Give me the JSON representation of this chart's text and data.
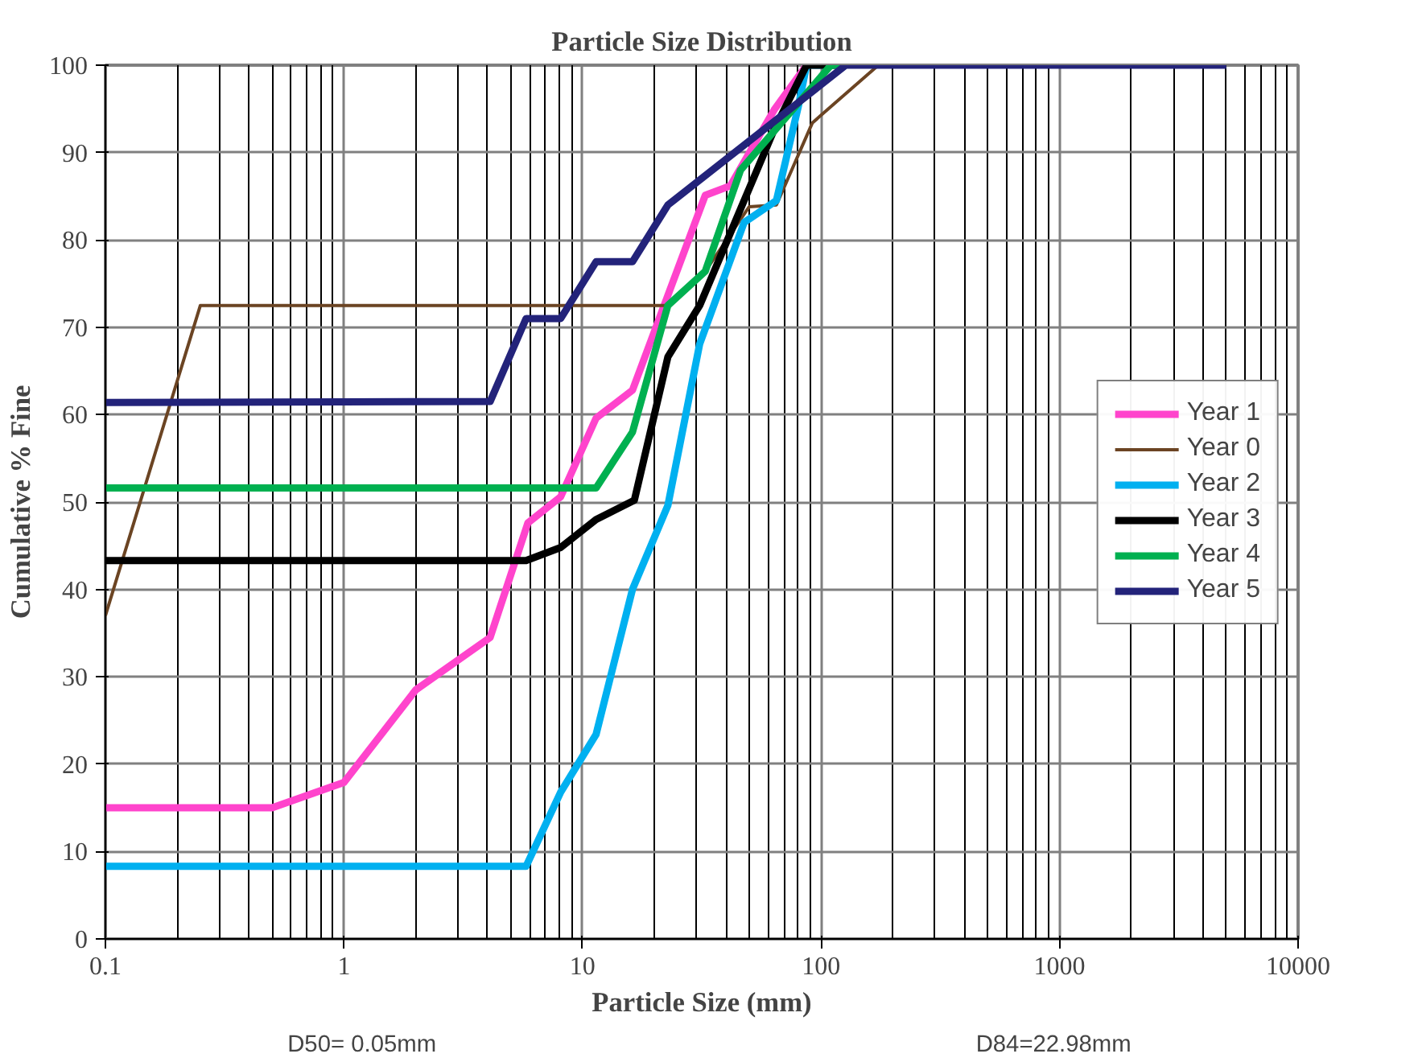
{
  "chart_data": {
    "type": "line",
    "title": "Particle Size Distribution",
    "xlabel": "Particle Size (mm)",
    "ylabel": "Cumulative % Fine",
    "log": "x",
    "xlim": [
      0.1,
      10000
    ],
    "xticks": [
      0.1,
      1,
      10,
      100,
      1000,
      10000
    ],
    "ylim": [
      0,
      100
    ],
    "yticks": [
      0,
      10,
      20,
      30,
      40,
      50,
      60,
      70,
      80,
      90,
      100
    ],
    "grid": true,
    "legend": "right",
    "marker": "none",
    "line_style": "solid",
    "annotations": [
      "D50= 0.05mm",
      "D84=22.98mm"
    ],
    "series": [
      {
        "name": "Year 1",
        "color": "#ff44cc",
        "x": [
          0.1,
          0.5,
          1,
          2,
          4.1,
          5.9,
          8.1,
          11.4,
          16.2,
          32.7,
          41.7,
          64,
          87
        ],
        "values": [
          15,
          15,
          17.9,
          28.5,
          34.5,
          47.6,
          50.6,
          59.6,
          62.8,
          85.1,
          86.2,
          95,
          100
        ]
      },
      {
        "name": "Year 0",
        "color": "#6b4423",
        "x": [
          0.1,
          0.25,
          22.4,
          32.7,
          50,
          65,
          92,
          174
        ],
        "values": [
          37,
          72.5,
          72.5,
          76.4,
          83.8,
          84,
          93.4,
          100
        ]
      },
      {
        "name": "Year 2",
        "color": "#00b0f0",
        "x": [
          0.1,
          5.8,
          8.1,
          11.4,
          16.2,
          22.8,
          31,
          47.6,
          65,
          80.5,
          87,
          128
        ],
        "values": [
          8.3,
          8.3,
          16.8,
          23.4,
          40,
          49.6,
          68.1,
          82,
          84.5,
          95.4,
          100,
          100
        ]
      },
      {
        "name": "Year 3",
        "color": "#000000",
        "x": [
          0.1,
          5.8,
          8.1,
          11.4,
          16.5,
          22.8,
          31,
          64,
          87,
          128
        ],
        "values": [
          43.3,
          43.3,
          44.8,
          48,
          50.2,
          66.6,
          72.5,
          92.8,
          100,
          100
        ]
      },
      {
        "name": "Year 4",
        "color": "#00b050",
        "x": [
          0.1,
          11.4,
          16.2,
          22.8,
          32.7,
          46,
          110,
          128
        ],
        "values": [
          51.6,
          51.6,
          58,
          72.5,
          76.4,
          88,
          100,
          100
        ]
      },
      {
        "name": "Year 5",
        "color": "#23237a",
        "x": [
          0.1,
          4.1,
          5.8,
          8.1,
          11.4,
          16.2,
          22.8,
          127,
          5000
        ],
        "values": [
          61.4,
          61.5,
          71,
          71,
          77.5,
          77.5,
          84,
          100,
          100
        ]
      }
    ]
  }
}
